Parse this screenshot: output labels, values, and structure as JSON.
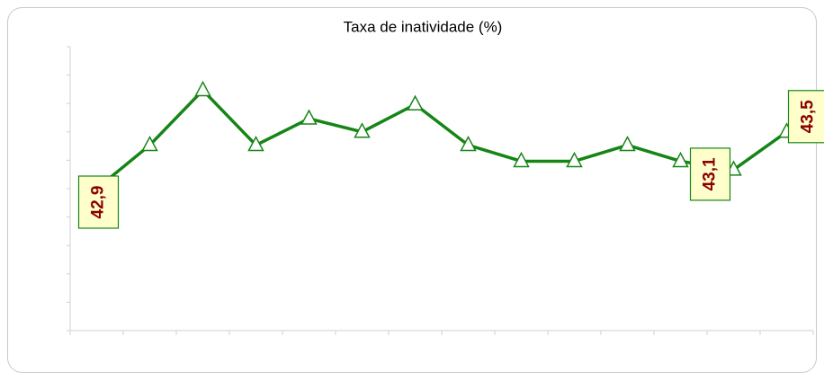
{
  "chart_data": {
    "type": "line",
    "title": "Taxa de inatividade (%)",
    "categories": [
      null,
      null,
      null,
      null,
      null,
      null,
      null,
      null,
      null,
      null,
      null,
      null,
      null,
      null
    ],
    "series": [
      {
        "name": null,
        "color": "#168516",
        "values": [
          42.9,
          43.36,
          43.94,
          43.36,
          43.64,
          43.5,
          43.79,
          43.36,
          43.19,
          43.19,
          43.36,
          43.19,
          43.1,
          43.5
        ],
        "value_labels": [
          "42,9",
          null,
          null,
          null,
          null,
          null,
          null,
          null,
          null,
          null,
          null,
          null,
          "43,1",
          "43,5"
        ]
      }
    ],
    "ylim": [
      41.4,
      44.4
    ],
    "yticks": [
      41.4,
      41.7,
      42,
      42.3,
      42.6,
      42.9,
      43.2,
      43.5,
      43.8,
      44.1,
      44.4
    ]
  }
}
